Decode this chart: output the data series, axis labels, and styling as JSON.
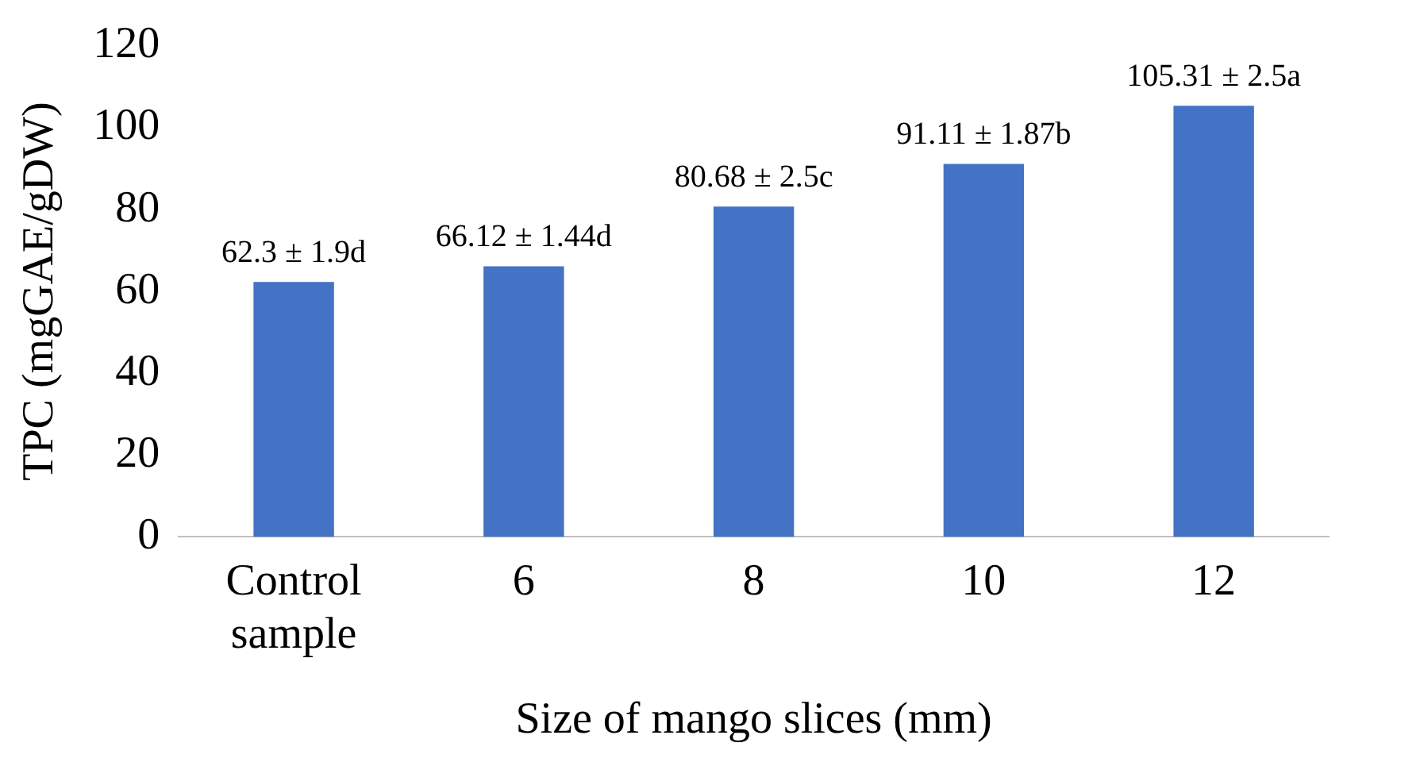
{
  "chart_data": {
    "type": "bar",
    "xlabel": "Size of mango slices (mm)",
    "ylabel": "TPC (mgGAE/gDW)",
    "categories": [
      "Control sample",
      "6",
      "8",
      "10",
      "12"
    ],
    "values": [
      62.3,
      66.12,
      80.68,
      91.11,
      105.31
    ],
    "color": "#4472c4",
    "value_labels": [
      "62.3 ± 1.9d",
      "66.12 ± 1.44d",
      "80.68 ± 2.5c",
      "91.11 ± 1.87b",
      "105.31 ± 2.5a"
    ],
    "ylim": [
      0,
      120
    ],
    "yticks": [
      0,
      20,
      40,
      60,
      80,
      100,
      120
    ],
    "grid": false,
    "legend": false
  }
}
